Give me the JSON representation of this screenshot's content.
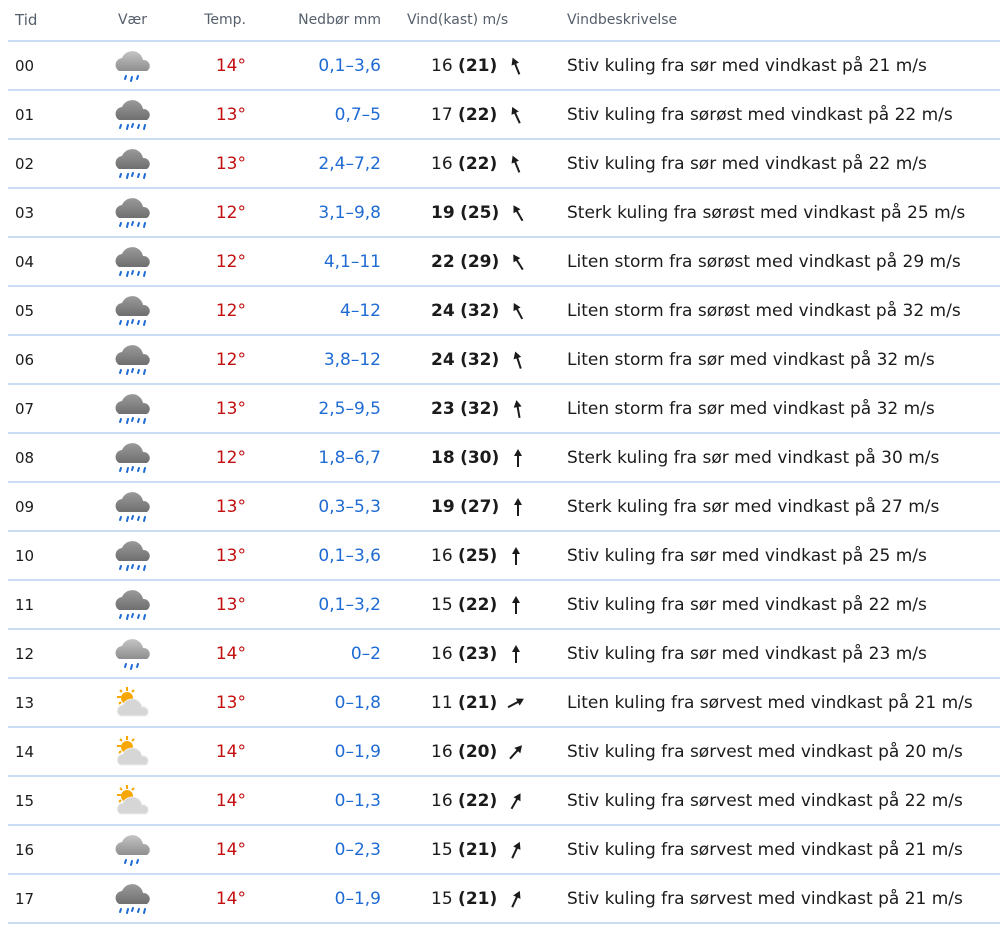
{
  "headers": {
    "time": "Tid",
    "weather": "Vær",
    "temp": "Temp.",
    "precip": "Nedbør mm",
    "wind": "Vind(kast) m/s",
    "desc": "Vindbeskrivelse"
  },
  "colors": {
    "temp": "#c30f0f",
    "precip": "#1f6bd4",
    "divider": "#c9dcf4"
  },
  "rows": [
    {
      "time": "00",
      "icon": "cloud-light-rain",
      "temp": "14°",
      "precip": "0,1–3,6",
      "wind": "16",
      "gust": "(21)",
      "strong": false,
      "dir": -22,
      "desc": "Stiv kuling fra sør med vindkast på 21 m/s"
    },
    {
      "time": "01",
      "icon": "cloud-rain",
      "temp": "13°",
      "precip": "0,7–5",
      "wind": "17",
      "gust": "(22)",
      "strong": false,
      "dir": -25,
      "desc": "Stiv kuling fra sørøst med vindkast på 22 m/s"
    },
    {
      "time": "02",
      "icon": "cloud-rain",
      "temp": "13°",
      "precip": "2,4–7,2",
      "wind": "16",
      "gust": "(22)",
      "strong": false,
      "dir": -22,
      "desc": "Stiv kuling fra sør med vindkast på 22 m/s"
    },
    {
      "time": "03",
      "icon": "cloud-rain",
      "temp": "12°",
      "precip": "3,1–9,8",
      "wind": "19",
      "gust": "(25)",
      "strong": true,
      "dir": -30,
      "desc": "Sterk kuling fra sørøst med vindkast på 25 m/s"
    },
    {
      "time": "04",
      "icon": "cloud-rain",
      "temp": "12°",
      "precip": "4,1–11",
      "wind": "22",
      "gust": "(29)",
      "strong": true,
      "dir": -32,
      "desc": "Liten storm fra sørøst med vindkast på 29 m/s"
    },
    {
      "time": "05",
      "icon": "cloud-rain",
      "temp": "12°",
      "precip": "4–12",
      "wind": "24",
      "gust": "(32)",
      "strong": true,
      "dir": -28,
      "desc": "Liten storm fra sørøst med vindkast på 32 m/s"
    },
    {
      "time": "06",
      "icon": "cloud-rain",
      "temp": "12°",
      "precip": "3,8–12",
      "wind": "24",
      "gust": "(32)",
      "strong": true,
      "dir": -18,
      "desc": "Liten storm fra sør med vindkast på 32 m/s"
    },
    {
      "time": "07",
      "icon": "cloud-rain",
      "temp": "13°",
      "precip": "2,5–9,5",
      "wind": "23",
      "gust": "(32)",
      "strong": true,
      "dir": -10,
      "desc": "Liten storm fra sør med vindkast på 32 m/s"
    },
    {
      "time": "08",
      "icon": "cloud-rain",
      "temp": "12°",
      "precip": "1,8–6,7",
      "wind": "18",
      "gust": "(30)",
      "strong": true,
      "dir": 0,
      "desc": "Sterk kuling fra sør med vindkast på 30 m/s"
    },
    {
      "time": "09",
      "icon": "cloud-rain",
      "temp": "13°",
      "precip": "0,3–5,3",
      "wind": "19",
      "gust": "(27)",
      "strong": true,
      "dir": 0,
      "desc": "Sterk kuling fra sør med vindkast på 27 m/s"
    },
    {
      "time": "10",
      "icon": "cloud-rain",
      "temp": "13°",
      "precip": "0,1–3,6",
      "wind": "16",
      "gust": "(25)",
      "strong": false,
      "dir": 0,
      "desc": "Stiv kuling fra sør med vindkast på 25 m/s"
    },
    {
      "time": "11",
      "icon": "cloud-rain",
      "temp": "13°",
      "precip": "0,1–3,2",
      "wind": "15",
      "gust": "(22)",
      "strong": false,
      "dir": 0,
      "desc": "Stiv kuling fra sør med vindkast på 22 m/s"
    },
    {
      "time": "12",
      "icon": "cloud-light-rain",
      "temp": "14°",
      "precip": "0–2",
      "wind": "16",
      "gust": "(23)",
      "strong": false,
      "dir": 0,
      "desc": "Stiv kuling fra sør med vindkast på 23 m/s"
    },
    {
      "time": "13",
      "icon": "partly-cloudy",
      "temp": "13°",
      "precip": "0–1,8",
      "wind": "11",
      "gust": "(21)",
      "strong": false,
      "dir": 62,
      "desc": "Liten kuling fra sørvest med vindkast på 21 m/s"
    },
    {
      "time": "14",
      "icon": "partly-cloudy",
      "temp": "14°",
      "precip": "0–1,9",
      "wind": "16",
      "gust": "(20)",
      "strong": false,
      "dir": 42,
      "desc": "Stiv kuling fra sørvest med vindkast på 20 m/s"
    },
    {
      "time": "15",
      "icon": "partly-cloudy",
      "temp": "14°",
      "precip": "0–1,3",
      "wind": "16",
      "gust": "(22)",
      "strong": false,
      "dir": 30,
      "desc": "Stiv kuling fra sørvest med vindkast på 22 m/s"
    },
    {
      "time": "16",
      "icon": "cloud-light-rain",
      "temp": "14°",
      "precip": "0–2,3",
      "wind": "15",
      "gust": "(21)",
      "strong": false,
      "dir": 25,
      "desc": "Stiv kuling fra sørvest med vindkast på 21 m/s"
    },
    {
      "time": "17",
      "icon": "cloud-rain",
      "temp": "14°",
      "precip": "0–1,9",
      "wind": "15",
      "gust": "(21)",
      "strong": false,
      "dir": 25,
      "desc": "Stiv kuling fra sørvest med vindkast på 21 m/s"
    }
  ]
}
